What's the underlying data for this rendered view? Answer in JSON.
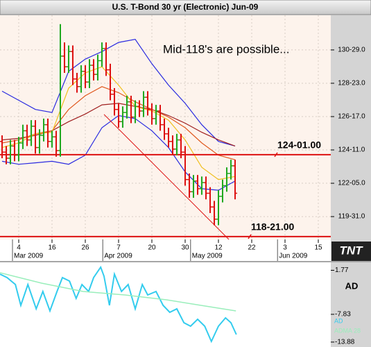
{
  "chart_data": [
    {
      "type": "ohlc",
      "title": "U.S. T-Bond 30 yr (Electronic) Jun-09",
      "annotation": "Mid-118's are possible...",
      "x": [
        -4,
        -3,
        -2,
        -1,
        0,
        1,
        2,
        3,
        4,
        5,
        6,
        7,
        8,
        9,
        10,
        11,
        12,
        13,
        14,
        15,
        16,
        17,
        18,
        19,
        20,
        21,
        22,
        23,
        24,
        25,
        26,
        27,
        28,
        29,
        30,
        31,
        32,
        33,
        34,
        35,
        36,
        37,
        38,
        39,
        40,
        41,
        42,
        43,
        44,
        45,
        46,
        47,
        48,
        49,
        50,
        51,
        52
      ],
      "open": [
        124.9,
        124.2,
        123.8,
        124.6,
        124.0,
        124.8,
        125.6,
        125.0,
        125.9,
        124.5,
        125.3,
        126.0,
        124.9,
        125.2,
        124.3,
        130.5,
        129.8,
        130.8,
        129.0,
        128.5,
        129.5,
        128.8,
        129.9,
        129.3,
        130.2,
        131.0,
        129.6,
        128.0,
        127.0,
        126.2,
        126.8,
        127.5,
        126.5,
        127.2,
        126.9,
        127.8,
        127.0,
        126.4,
        126.9,
        126.0,
        125.4,
        124.9,
        124.4,
        125.0,
        124.2,
        122.4,
        121.6,
        122.3,
        121.8,
        122.2,
        121.5,
        120.6,
        119.8,
        121.3,
        122.0,
        122.8,
        123.3
      ],
      "high": [
        125.3,
        124.6,
        125.0,
        125.0,
        125.2,
        126.0,
        126.0,
        126.3,
        126.3,
        125.7,
        126.4,
        126.4,
        125.6,
        125.6,
        132.6,
        131.4,
        131.2,
        131.2,
        129.4,
        129.9,
        129.9,
        130.3,
        130.3,
        130.6,
        131.4,
        131.4,
        130.0,
        128.4,
        127.4,
        127.2,
        127.9,
        127.9,
        127.6,
        127.6,
        128.2,
        128.2,
        127.4,
        127.3,
        127.3,
        126.4,
        125.8,
        125.3,
        125.4,
        125.4,
        124.6,
        122.8,
        122.7,
        122.7,
        122.6,
        122.6,
        121.9,
        121.0,
        121.7,
        122.4,
        123.2,
        123.7,
        123.7
      ],
      "low": [
        123.8,
        123.4,
        123.4,
        123.6,
        123.6,
        124.4,
        124.6,
        124.6,
        124.1,
        124.1,
        124.9,
        124.5,
        124.5,
        123.9,
        123.9,
        129.4,
        129.4,
        128.6,
        128.1,
        128.1,
        128.4,
        128.4,
        128.9,
        128.9,
        129.8,
        129.2,
        127.6,
        126.6,
        125.8,
        125.8,
        126.4,
        126.1,
        126.1,
        126.5,
        126.5,
        126.6,
        126.0,
        126.0,
        125.6,
        125.0,
        124.5,
        124.0,
        124.0,
        123.8,
        122.0,
        121.2,
        121.2,
        121.4,
        121.4,
        121.1,
        120.2,
        119.4,
        119.4,
        120.9,
        121.6,
        122.4,
        121.1
      ],
      "close": [
        124.2,
        123.8,
        124.6,
        124.0,
        124.8,
        125.6,
        125.0,
        125.9,
        124.5,
        125.3,
        126.0,
        124.9,
        125.2,
        124.3,
        130.5,
        129.8,
        130.8,
        129.0,
        128.5,
        129.5,
        128.8,
        129.9,
        129.3,
        130.2,
        131.0,
        129.6,
        128.0,
        127.0,
        126.2,
        126.8,
        127.5,
        126.5,
        127.2,
        126.9,
        127.8,
        127.0,
        126.4,
        126.9,
        126.0,
        125.4,
        124.9,
        124.4,
        125.0,
        124.2,
        122.4,
        121.6,
        122.3,
        121.8,
        122.2,
        121.5,
        120.6,
        119.8,
        121.3,
        122.0,
        122.8,
        123.3,
        121.5
      ],
      "up_color": "#1fa81f",
      "down_color": "#dd1111",
      "xlim": [
        -4.5,
        75
      ],
      "xticks": [
        {
          "value": 0,
          "label": "4"
        },
        {
          "value": 8,
          "label": "16"
        },
        {
          "value": 16,
          "label": "26"
        },
        {
          "value": 24,
          "label": "7"
        },
        {
          "value": 32,
          "label": "20"
        },
        {
          "value": 40,
          "label": "30"
        },
        {
          "value": 48,
          "label": "12"
        },
        {
          "value": 56,
          "label": "22"
        },
        {
          "value": 64,
          "label": "3"
        },
        {
          "value": 72,
          "label": "15"
        }
      ],
      "month_ticks": [
        {
          "value": -1.5,
          "label": "Mar 2009"
        },
        {
          "value": 20.2,
          "label": "Apr 2009"
        },
        {
          "value": 41.3,
          "label": "May 2009"
        },
        {
          "value": 62.2,
          "label": "Jun 2009"
        }
      ],
      "ylim": [
        118.47,
        133.18
      ],
      "yticks": [
        {
          "value": 130.90625,
          "label": "130-29.0"
        },
        {
          "value": 128.71875,
          "label": "128-23.0"
        },
        {
          "value": 126.53125,
          "label": "126-17.0"
        },
        {
          "value": 124.34375,
          "label": "124-11.0"
        },
        {
          "value": 122.15625,
          "label": "122-05.0"
        },
        {
          "value": 119.96875,
          "label": "119-31.0"
        }
      ],
      "grid": true,
      "lines": [
        {
          "color": "#2a2ae0",
          "x": [
            -4,
            0,
            4,
            8,
            12,
            16,
            20,
            24,
            28,
            32,
            36,
            40,
            44,
            48,
            52
          ],
          "values": [
            128.2,
            127.6,
            127.0,
            126.8,
            129.5,
            130.3,
            130.8,
            131.4,
            131.6,
            130.0,
            128.6,
            127.4,
            126.0,
            124.9,
            124.6
          ]
        },
        {
          "color": "#2a2ae0",
          "x": [
            -4,
            0,
            4,
            8,
            12,
            16,
            20,
            24,
            28,
            32,
            36,
            40,
            44,
            48,
            52
          ],
          "values": [
            123.6,
            123.4,
            123.5,
            123.6,
            123.4,
            124.0,
            125.8,
            126.6,
            126.4,
            125.6,
            124.5,
            122.9,
            121.8,
            121.7,
            122.3
          ]
        },
        {
          "color": "#a02020",
          "x": [
            -4,
            0,
            4,
            8,
            12,
            16,
            20,
            24,
            28,
            32,
            36,
            40,
            44,
            48,
            52
          ],
          "values": [
            125.0,
            125.1,
            125.3,
            125.6,
            126.2,
            126.7,
            127.3,
            127.4,
            127.2,
            127.0,
            126.6,
            126.1,
            125.5,
            125.0,
            124.6
          ]
        },
        {
          "color": "#e05a20",
          "x": [
            -4,
            0,
            4,
            8,
            12,
            16,
            20,
            24,
            28,
            32,
            36,
            40,
            44,
            48,
            52
          ],
          "values": [
            124.8,
            125.0,
            125.4,
            125.6,
            127.0,
            127.9,
            128.5,
            128.1,
            127.5,
            127.0,
            126.5,
            125.8,
            124.8,
            124.0,
            123.7
          ]
        },
        {
          "color": "#f0c020",
          "x": [
            -4,
            0,
            4,
            8,
            12,
            16,
            20,
            24,
            28,
            32,
            36,
            40,
            44,
            48,
            52
          ],
          "values": [
            124.5,
            124.8,
            125.4,
            125.5,
            128.4,
            129.4,
            129.8,
            128.6,
            127.2,
            126.9,
            126.3,
            125.0,
            123.2,
            122.4,
            122.6
          ]
        }
      ],
      "channel": {
        "color": "#dd1111",
        "x": [
          20.5,
          50.5
        ],
        "values": [
          126.67,
          118.47
        ]
      },
      "levels": [
        {
          "value": 124.03125,
          "label": "124-01.00",
          "color": "#dd1111"
        },
        {
          "value": 118.65625,
          "label": "118-21.00",
          "color": "#dd1111"
        }
      ],
      "logo": "TNT"
    },
    {
      "type": "line",
      "panel_label": "AD",
      "xlim": [
        -4.5,
        75
      ],
      "ylim": [
        -14.5,
        2.9
      ],
      "yticks": [
        1.77,
        -7.83,
        -13.88
      ],
      "series": [
        {
          "name": "AD",
          "color": "#33ccee",
          "x": [
            -4.5,
            -2.8,
            -0.8,
            0.5,
            2.2,
            4.2,
            5.8,
            7.5,
            9.2,
            10.5,
            12.2,
            13.8,
            15.2,
            16.8,
            18,
            19.7,
            20.5,
            21.8,
            23,
            24.7,
            26.3,
            28,
            29.7,
            31,
            33,
            34.7,
            36.3,
            38,
            39.7,
            41.3,
            43,
            44.7,
            46.3,
            48,
            49.7,
            51,
            52.3
          ],
          "values": [
            0.93,
            0.18,
            -1.34,
            -5.87,
            -1.34,
            -6.63,
            -2.85,
            -7.08,
            -2.85,
            0.18,
            -0.58,
            -4.36,
            -1.34,
            -2.85,
            0.18,
            2.45,
            0.48,
            -5.87,
            0.93,
            -2.85,
            -1.34,
            -6.63,
            -1.34,
            -3.61,
            -2.85,
            -5.87,
            -7.39,
            -6.63,
            -9.66,
            -10.41,
            -8.9,
            -10.41,
            -13.74,
            -10.41,
            -8.6,
            -9.66,
            -12.23
          ]
        },
        {
          "name": "ADMA 28",
          "color": "#99eebb",
          "x": [
            -4.5,
            5.5,
            15.5,
            25.5,
            35.5,
            43.8,
            52.2
          ],
          "values": [
            1.24,
            -1.03,
            -2.85,
            -3.6,
            -4.66,
            -5.87,
            -7.08
          ]
        }
      ]
    }
  ]
}
